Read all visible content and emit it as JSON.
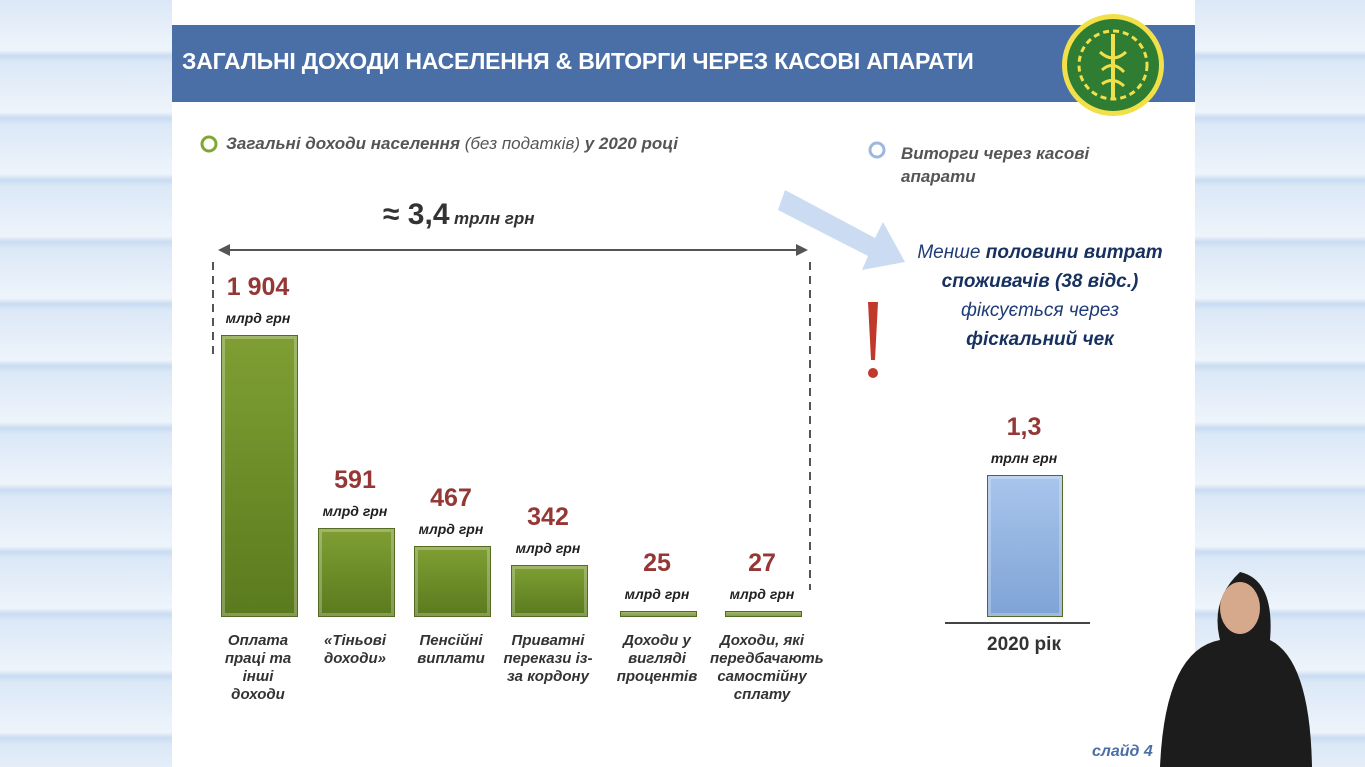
{
  "header": {
    "title": "ЗАГАЛЬНІ ДОХОДИ НАСЕЛЕННЯ & ВИТОРГИ ЧЕРЕЗ КАСОВІ АПАРАТИ",
    "footer": "слайд 4"
  },
  "chart_data": [
    {
      "type": "bar",
      "legend_parts": [
        "Загальні доходи населення",
        "(без податків)",
        "у 2020 році"
      ],
      "total_label": "≈ 3,4",
      "total_unit": "трлн грн",
      "categories": [
        "Оплата праці та інші доходи",
        "«Тіньові доходи»",
        "Пенсійні виплати",
        "Приватні перекази із-за кордону",
        "Доходи у вигляді процентів",
        "Доходи, які передбачають самостійну сплату"
      ],
      "values": [
        1904,
        591,
        467,
        342,
        25,
        27
      ],
      "value_labels": [
        "1 904",
        "591",
        "467",
        "342",
        "25",
        "27"
      ],
      "unit": "млрд грн",
      "color": "#7f9f34"
    },
    {
      "type": "bar",
      "legend": "Виторги через касові апарати",
      "note_parts": [
        "Менше",
        "половини витрат споживачів (38 відс.)",
        "фіксується через",
        "фіскальний чек"
      ],
      "categories": [
        "2020 рік"
      ],
      "values": [
        1.3
      ],
      "value_labels": [
        "1,3"
      ],
      "unit": "трлн грн",
      "color": "#a8c5ec"
    }
  ]
}
